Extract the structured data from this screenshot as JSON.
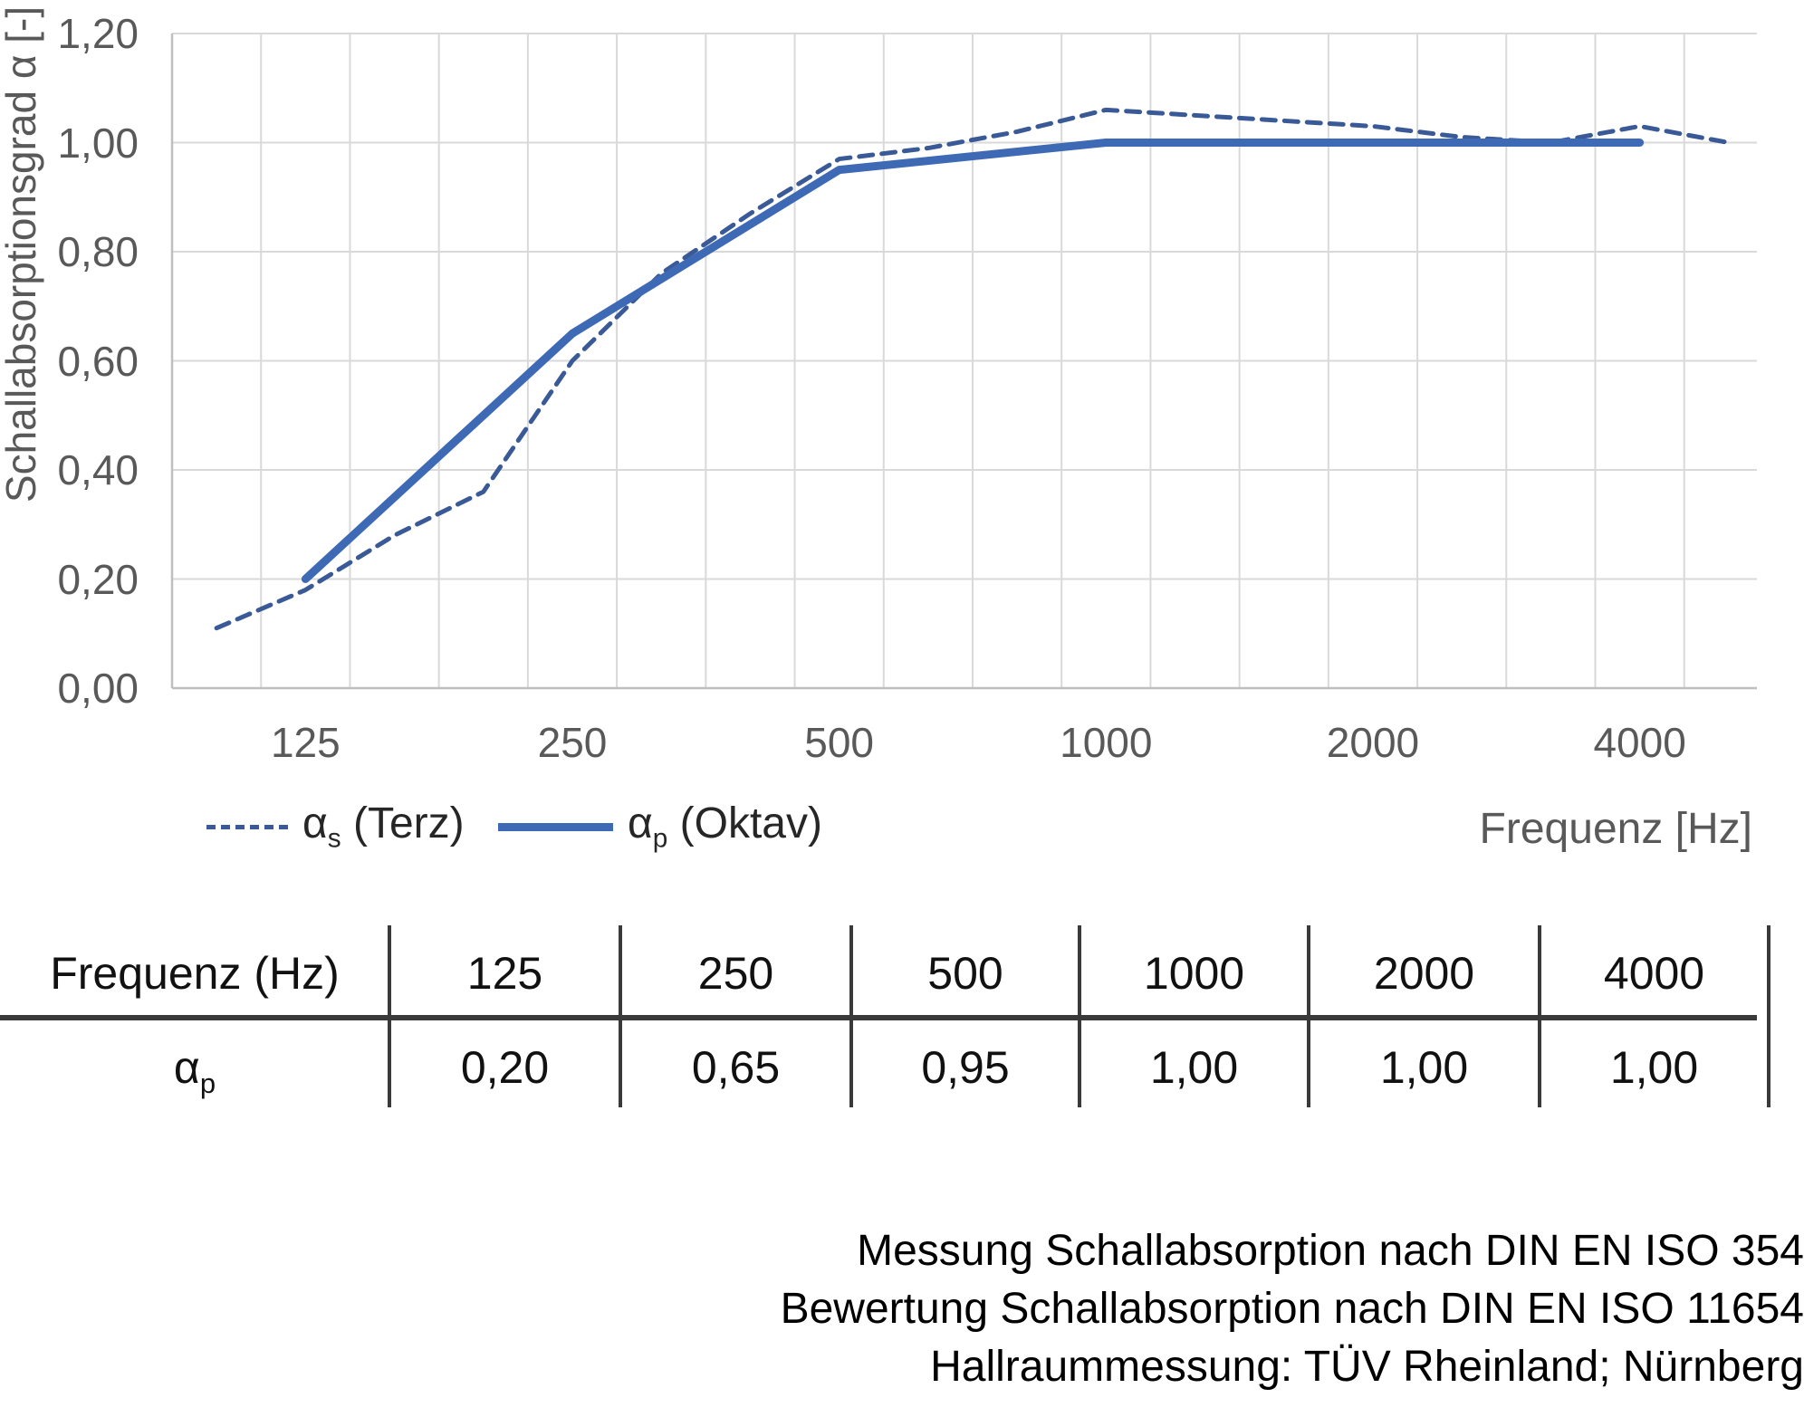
{
  "chart": {
    "y_axis_title": "Schallabsorptionsgrad α [-]",
    "x_axis_title": "Frequenz [Hz]",
    "y_ticks": [
      "0,00",
      "0,20",
      "0,40",
      "0,60",
      "0,80",
      "1,00",
      "1,20"
    ],
    "x_ticks": [
      "125",
      "250",
      "500",
      "1000",
      "2000",
      "4000"
    ],
    "colors": {
      "grid": "#d9d9d9",
      "axis": "#bfbfbf",
      "tick_text": "#595959",
      "series_dashed": "#3a5a97",
      "series_solid": "#3e6ab5",
      "legend_text": "#262626",
      "table_line": "#3a3a3a",
      "table_text": "#111111",
      "footer_text": "#000000"
    }
  },
  "chart_data": {
    "type": "line",
    "title": "",
    "xlabel": "Frequenz [Hz]",
    "ylabel": "Schallabsorptionsgrad α [-]",
    "x_scale": "log-third-octave-bands",
    "bands": [
      100,
      125,
      160,
      200,
      250,
      315,
      400,
      500,
      630,
      800,
      1000,
      1250,
      1600,
      2000,
      2500,
      3150,
      4000,
      5000
    ],
    "ylim": [
      0,
      1.2
    ],
    "y_tick_step": 0.2,
    "grid": true,
    "legend_position": "bottom-left",
    "series": [
      {
        "name": "αs (Terz)",
        "legend": {
          "alpha": "α",
          "sub": "s",
          "rest": " (Terz)"
        },
        "style": "dashed",
        "color": "#3a5a97",
        "x": [
          100,
          125,
          160,
          200,
          250,
          315,
          400,
          500,
          630,
          800,
          1000,
          1250,
          1600,
          2000,
          2500,
          3150,
          4000,
          5000
        ],
        "values": [
          0.11,
          0.18,
          0.28,
          0.36,
          0.6,
          0.76,
          0.87,
          0.97,
          0.99,
          1.02,
          1.06,
          1.05,
          1.04,
          1.03,
          1.01,
          1.0,
          1.03,
          1.0
        ]
      },
      {
        "name": "αp (Oktav)",
        "legend": {
          "alpha": "α",
          "sub": "p",
          "rest": " (Oktav)"
        },
        "style": "solid",
        "color": "#3e6ab5",
        "x": [
          125,
          250,
          500,
          1000,
          2000,
          4000
        ],
        "values": [
          0.2,
          0.65,
          0.95,
          1.0,
          1.0,
          1.0
        ]
      }
    ]
  },
  "table": {
    "header": [
      "Frequenz (Hz)",
      "125",
      "250",
      "500",
      "1000",
      "2000",
      "4000"
    ],
    "rows": [
      {
        "label": {
          "alpha": "α",
          "sub": "p"
        },
        "values": [
          "0,20",
          "0,65",
          "0,95",
          "1,00",
          "1,00",
          "1,00"
        ]
      }
    ]
  },
  "footer": {
    "lines": [
      "Messung Schallabsorption nach DIN EN ISO 354",
      "Bewertung Schallabsorption nach DIN EN ISO 11654",
      "Hallraummessung: TÜV Rheinland; Nürnberg"
    ]
  }
}
